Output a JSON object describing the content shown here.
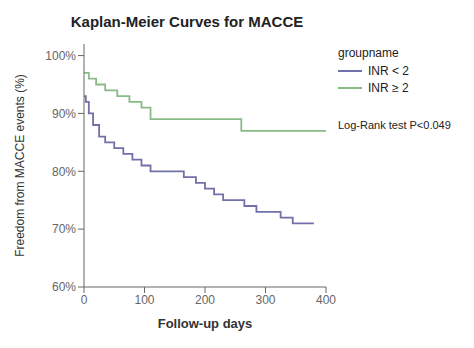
{
  "chart_data": {
    "type": "step",
    "title": "Kaplan-Meier Curves for MACCE",
    "x_label": "Follow-up days",
    "y_label": "Freedom from MACCE events (%)",
    "xlim": [
      0,
      400
    ],
    "ylim": [
      60,
      102
    ],
    "xticks": [
      0,
      100,
      200,
      300,
      400
    ],
    "yticks": [
      {
        "value": 60,
        "label": "60%"
      },
      {
        "value": 70,
        "label": "70%"
      },
      {
        "value": 80,
        "label": "80%"
      },
      {
        "value": 90,
        "label": "90%"
      },
      {
        "value": 100,
        "label": "100%"
      }
    ],
    "grid": false,
    "legend": "right",
    "legend_title": "groupname",
    "annotations": [
      "Log-Rank test P<0.049"
    ],
    "series": [
      {
        "name": "INR < 2",
        "color": "#7070aa",
        "x": [
          0,
          3,
          8,
          15,
          25,
          35,
          50,
          65,
          80,
          95,
          110,
          130,
          150,
          165,
          185,
          200,
          215,
          230,
          250,
          265,
          285,
          305,
          325,
          345,
          360,
          380
        ],
        "values": [
          93,
          92,
          90,
          88,
          86,
          85,
          84,
          83,
          82,
          81,
          80,
          80,
          80,
          79,
          78,
          77,
          76,
          75,
          75,
          74,
          73,
          73,
          72,
          71,
          71,
          71
        ]
      },
      {
        "name": "INR ≥ 2",
        "color": "#88bb88",
        "x": [
          0,
          8,
          20,
          35,
          55,
          75,
          95,
          110,
          240,
          260,
          370,
          400
        ],
        "values": [
          97,
          96,
          95,
          94,
          93,
          92,
          91,
          89,
          89,
          87,
          87,
          87
        ]
      }
    ]
  }
}
